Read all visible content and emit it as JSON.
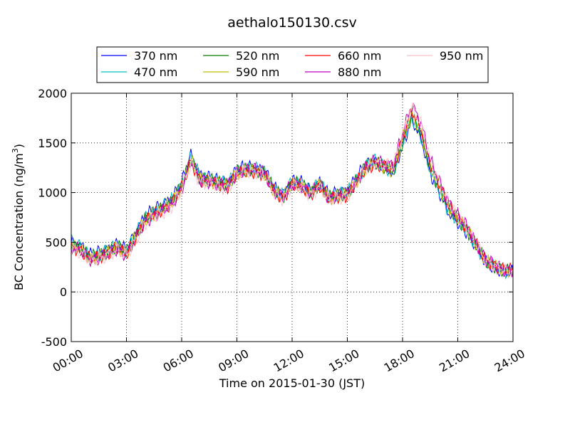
{
  "chart_data": {
    "type": "line",
    "title": "aethalo150130.csv",
    "xlabel": "Time on 2015-01-30 (JST)",
    "ylabel": "BC Concentration (ng/m",
    "ylabel_sup": "3",
    "ylabel_end": ")",
    "xlim": [
      "00:00",
      "24:00"
    ],
    "ylim": [
      -500,
      2000
    ],
    "xticks": [
      "00:00",
      "03:00",
      "06:00",
      "09:00",
      "12:00",
      "15:00",
      "18:00",
      "21:00",
      "24:00"
    ],
    "yticks": [
      "-500",
      "0",
      "500",
      "1000",
      "1500",
      "2000"
    ],
    "ytick_values": [
      -500,
      0,
      500,
      1000,
      1500,
      2000
    ],
    "grid": true,
    "legend_position": "top",
    "x_hours": [
      0,
      0.5,
      1,
      1.5,
      2,
      2.5,
      3,
      3.5,
      4,
      4.5,
      5,
      5.5,
      6,
      6.5,
      7,
      7.5,
      8,
      8.5,
      9,
      9.5,
      10,
      10.5,
      11,
      11.5,
      12,
      12.5,
      13,
      13.5,
      14,
      14.5,
      15,
      15.5,
      16,
      16.5,
      17,
      17.5,
      18,
      18.5,
      19,
      19.5,
      20,
      20.5,
      21,
      21.5,
      22,
      22.5,
      23,
      23.5,
      24
    ],
    "series": [
      {
        "name": "370 nm",
        "color": "#0000ff",
        "values": [
          500,
          470,
          370,
          400,
          430,
          480,
          420,
          600,
          760,
          830,
          880,
          950,
          1100,
          1380,
          1170,
          1150,
          1120,
          1100,
          1230,
          1260,
          1250,
          1220,
          1050,
          980,
          1120,
          1100,
          1020,
          1110,
          970,
          1000,
          1020,
          1150,
          1280,
          1330,
          1260,
          1200,
          1480,
          1740,
          1550,
          1200,
          1000,
          800,
          700,
          600,
          450,
          300,
          250,
          200,
          200
        ]
      },
      {
        "name": "470 nm",
        "color": "#00bfbf",
        "values": [
          520,
          450,
          360,
          380,
          420,
          470,
          410,
          580,
          740,
          810,
          860,
          930,
          1080,
          1360,
          1150,
          1140,
          1110,
          1090,
          1220,
          1240,
          1240,
          1210,
          1040,
          970,
          1110,
          1090,
          1010,
          1100,
          960,
          990,
          1000,
          1130,
          1270,
          1320,
          1260,
          1210,
          1500,
          1760,
          1570,
          1220,
          1020,
          820,
          720,
          610,
          460,
          310,
          250,
          210,
          200
        ]
      },
      {
        "name": "520 nm",
        "color": "#008000",
        "values": [
          480,
          440,
          350,
          370,
          410,
          460,
          400,
          570,
          730,
          800,
          850,
          920,
          1070,
          1340,
          1140,
          1130,
          1100,
          1080,
          1210,
          1230,
          1230,
          1200,
          1030,
          960,
          1100,
          1080,
          1000,
          1090,
          950,
          980,
          990,
          1120,
          1260,
          1310,
          1250,
          1210,
          1510,
          1780,
          1590,
          1240,
          1040,
          840,
          730,
          620,
          470,
          310,
          260,
          210,
          210
        ]
      },
      {
        "name": "590 nm",
        "color": "#bfbf00",
        "values": [
          470,
          430,
          340,
          360,
          400,
          450,
          390,
          560,
          720,
          790,
          840,
          910,
          1060,
          1330,
          1130,
          1120,
          1090,
          1070,
          1200,
          1220,
          1220,
          1190,
          1020,
          950,
          1090,
          1070,
          990,
          1080,
          940,
          970,
          980,
          1110,
          1250,
          1300,
          1250,
          1220,
          1530,
          1800,
          1610,
          1260,
          1060,
          860,
          740,
          630,
          480,
          320,
          260,
          220,
          210
        ]
      },
      {
        "name": "660 nm",
        "color": "#ff0000",
        "values": [
          460,
          420,
          330,
          350,
          390,
          440,
          380,
          550,
          710,
          780,
          830,
          900,
          1050,
          1320,
          1120,
          1110,
          1080,
          1060,
          1190,
          1210,
          1210,
          1180,
          1010,
          940,
          1080,
          1060,
          980,
          1070,
          930,
          960,
          970,
          1100,
          1240,
          1290,
          1260,
          1240,
          1550,
          1830,
          1640,
          1290,
          1080,
          870,
          750,
          640,
          480,
          320,
          270,
          220,
          220
        ]
      },
      {
        "name": "880 nm",
        "color": "#bf00bf",
        "values": [
          450,
          420,
          330,
          340,
          380,
          430,
          370,
          540,
          700,
          770,
          820,
          890,
          1040,
          1330,
          1120,
          1110,
          1080,
          1060,
          1200,
          1230,
          1230,
          1200,
          1020,
          950,
          1090,
          1070,
          990,
          1080,
          940,
          970,
          980,
          1120,
          1260,
          1320,
          1290,
          1280,
          1600,
          1880,
          1700,
          1330,
          1110,
          900,
          770,
          660,
          490,
          330,
          270,
          220,
          220
        ]
      },
      {
        "name": "950 nm",
        "color": "#ffc0cb",
        "values": [
          440,
          400,
          320,
          330,
          370,
          420,
          360,
          520,
          680,
          750,
          800,
          870,
          1020,
          1300,
          1100,
          1090,
          1060,
          1040,
          1180,
          1210,
          1210,
          1180,
          1000,
          930,
          1070,
          1050,
          970,
          1060,
          920,
          950,
          960,
          1100,
          1240,
          1300,
          1280,
          1270,
          1590,
          1860,
          1690,
          1320,
          1100,
          890,
          760,
          650,
          480,
          320,
          260,
          210,
          210
        ]
      }
    ]
  }
}
